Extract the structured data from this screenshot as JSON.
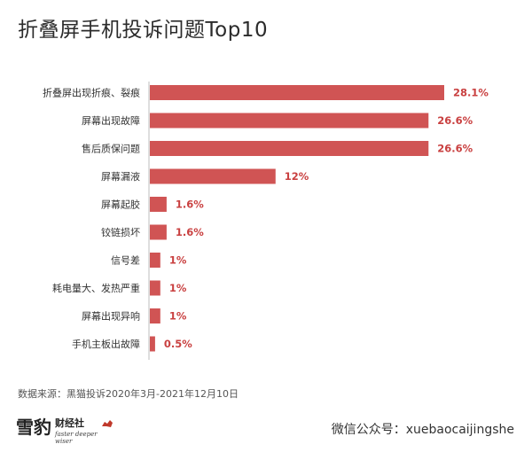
{
  "title": "折叠屏手机投诉问题Top10",
  "chart_data": {
    "type": "bar",
    "orientation": "horizontal",
    "categories": [
      "折叠屏出现折痕、裂痕",
      "屏幕出现故障",
      "售后质保问题",
      "屏幕漏液",
      "屏幕起胶",
      "铰链损坏",
      "信号差",
      "耗电量大、发热严重",
      "屏幕出现异响",
      "手机主板出故障"
    ],
    "values": [
      28.1,
      26.6,
      26.6,
      12,
      1.6,
      1.6,
      1,
      1,
      1,
      0.5
    ],
    "labels": [
      "28.1%",
      "26.6%",
      "26.6%",
      "12%",
      "1.6%",
      "1.6%",
      "1%",
      "1%",
      "1%",
      "0.5%"
    ],
    "xlim": [
      0,
      28.1
    ],
    "grid": false,
    "bar_color": "#d05454",
    "label_color": "#c94040"
  },
  "source": "数据来源：黑猫投诉2020年3月-2021年12月10日",
  "logo": {
    "big": "雪豹",
    "name": "财经社",
    "slogan": "faster deeper wiser"
  },
  "wechat": "微信公众号：xuebaocaijingshe"
}
